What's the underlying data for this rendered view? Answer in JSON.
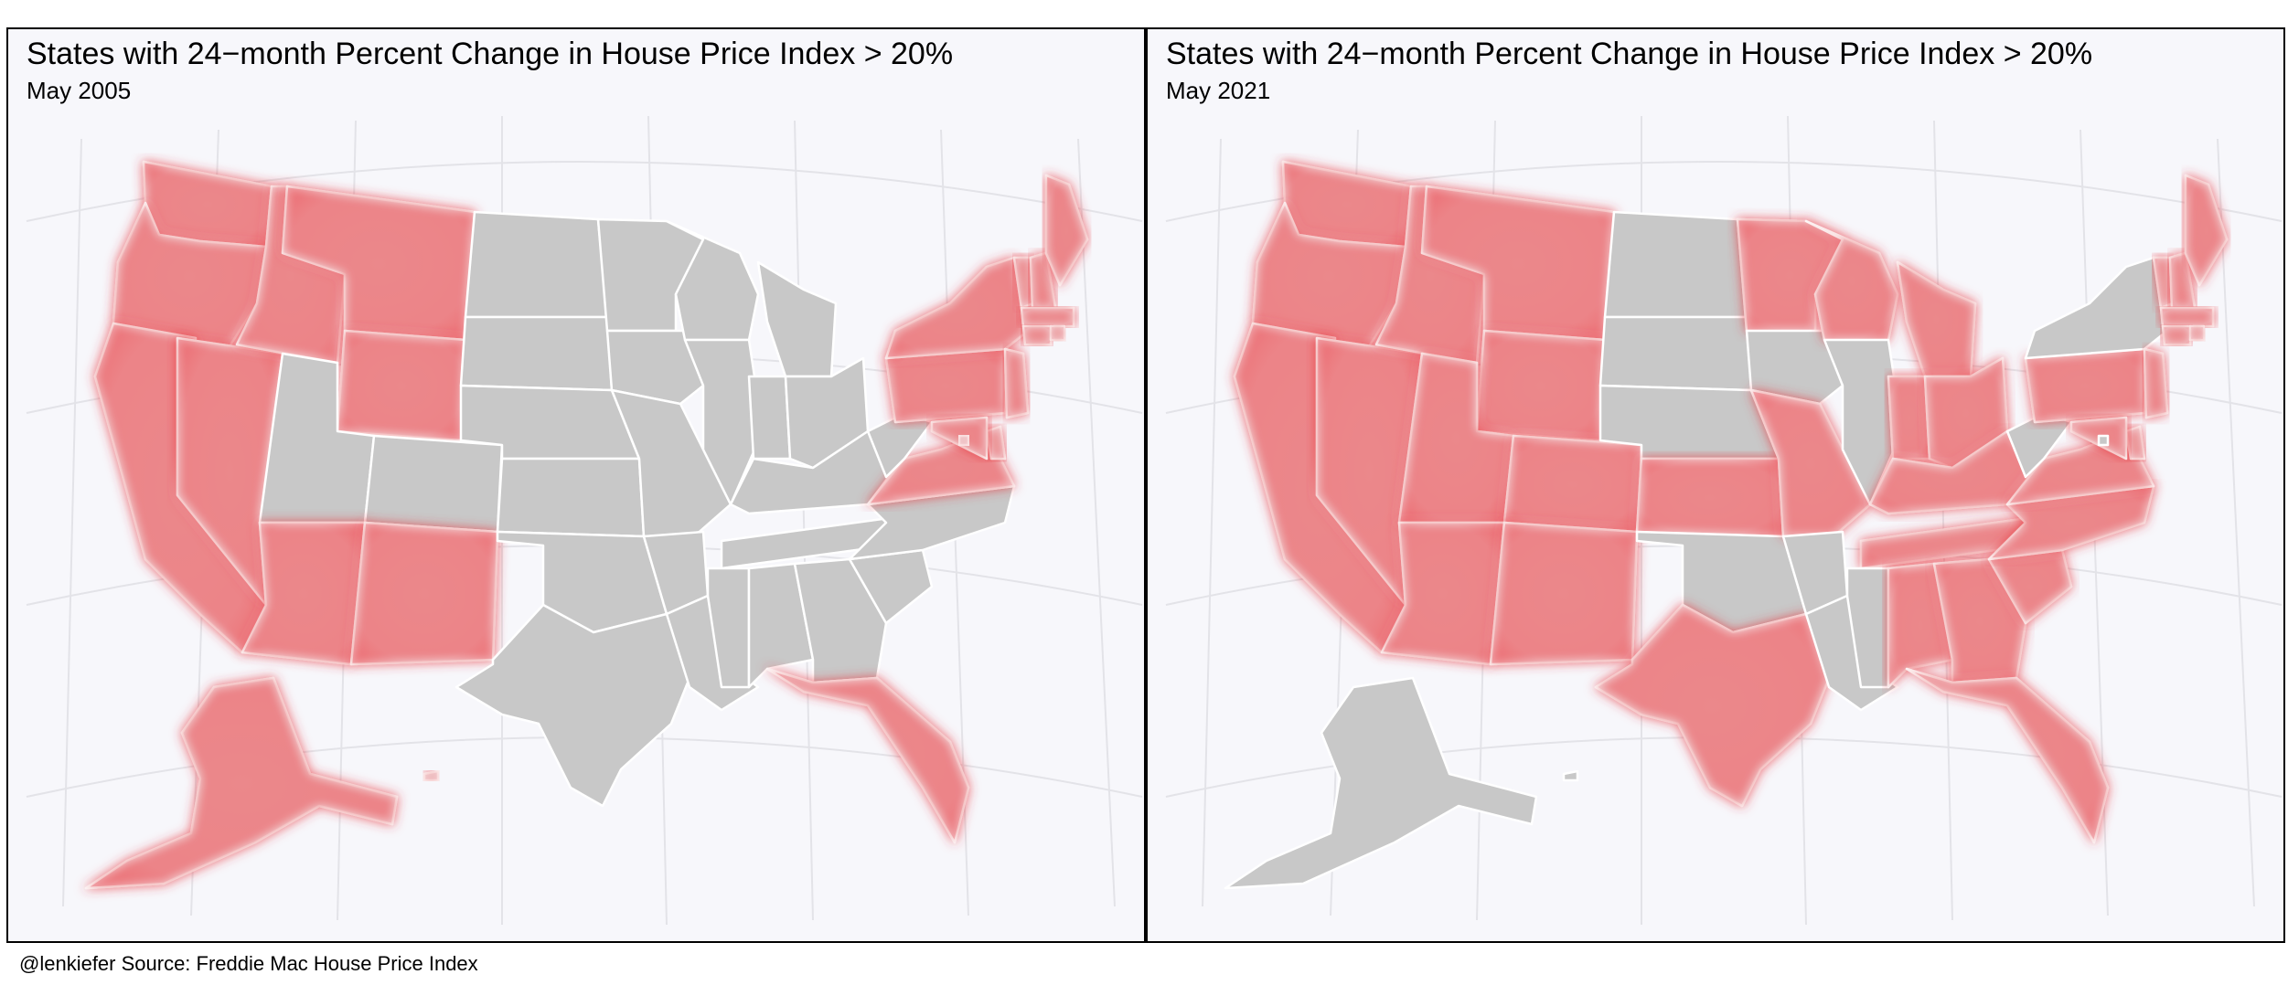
{
  "caption": "@lenkiefer Source: Freddie Mac House Price Index",
  "colors": {
    "highlight": "#e8343c",
    "highlight_fill": "#f3f0f2",
    "base_state": "#c8c8c8",
    "border": "#ffffff",
    "panel_background": "#f7f7fb",
    "graticule": "#e3e3e8"
  },
  "panels": [
    {
      "title": "States with 24−month Percent Change in House Price Index > 20%",
      "subtitle": "May 2005",
      "highlighted_states": [
        "WA",
        "OR",
        "CA",
        "NV",
        "ID",
        "MT",
        "WY",
        "AZ",
        "NM",
        "AK",
        "HI",
        "FL",
        "NY",
        "VT",
        "NH",
        "ME",
        "MA",
        "RI",
        "CT",
        "NJ",
        "PA",
        "DE",
        "MD",
        "DC",
        "VA"
      ]
    },
    {
      "title": "States with 24−month Percent Change in House Price Index > 20%",
      "subtitle": "May 2021",
      "highlighted_states": [
        "WA",
        "OR",
        "CA",
        "NV",
        "ID",
        "MT",
        "WY",
        "UT",
        "CO",
        "AZ",
        "NM",
        "TX",
        "KS",
        "MO",
        "MN",
        "WI",
        "MI",
        "IN",
        "OH",
        "KY",
        "TN",
        "NC",
        "SC",
        "GA",
        "AL",
        "FL",
        "PA",
        "NJ",
        "VT",
        "NH",
        "ME",
        "MA",
        "RI",
        "CT",
        "VA",
        "MD",
        "DE"
      ]
    }
  ]
}
